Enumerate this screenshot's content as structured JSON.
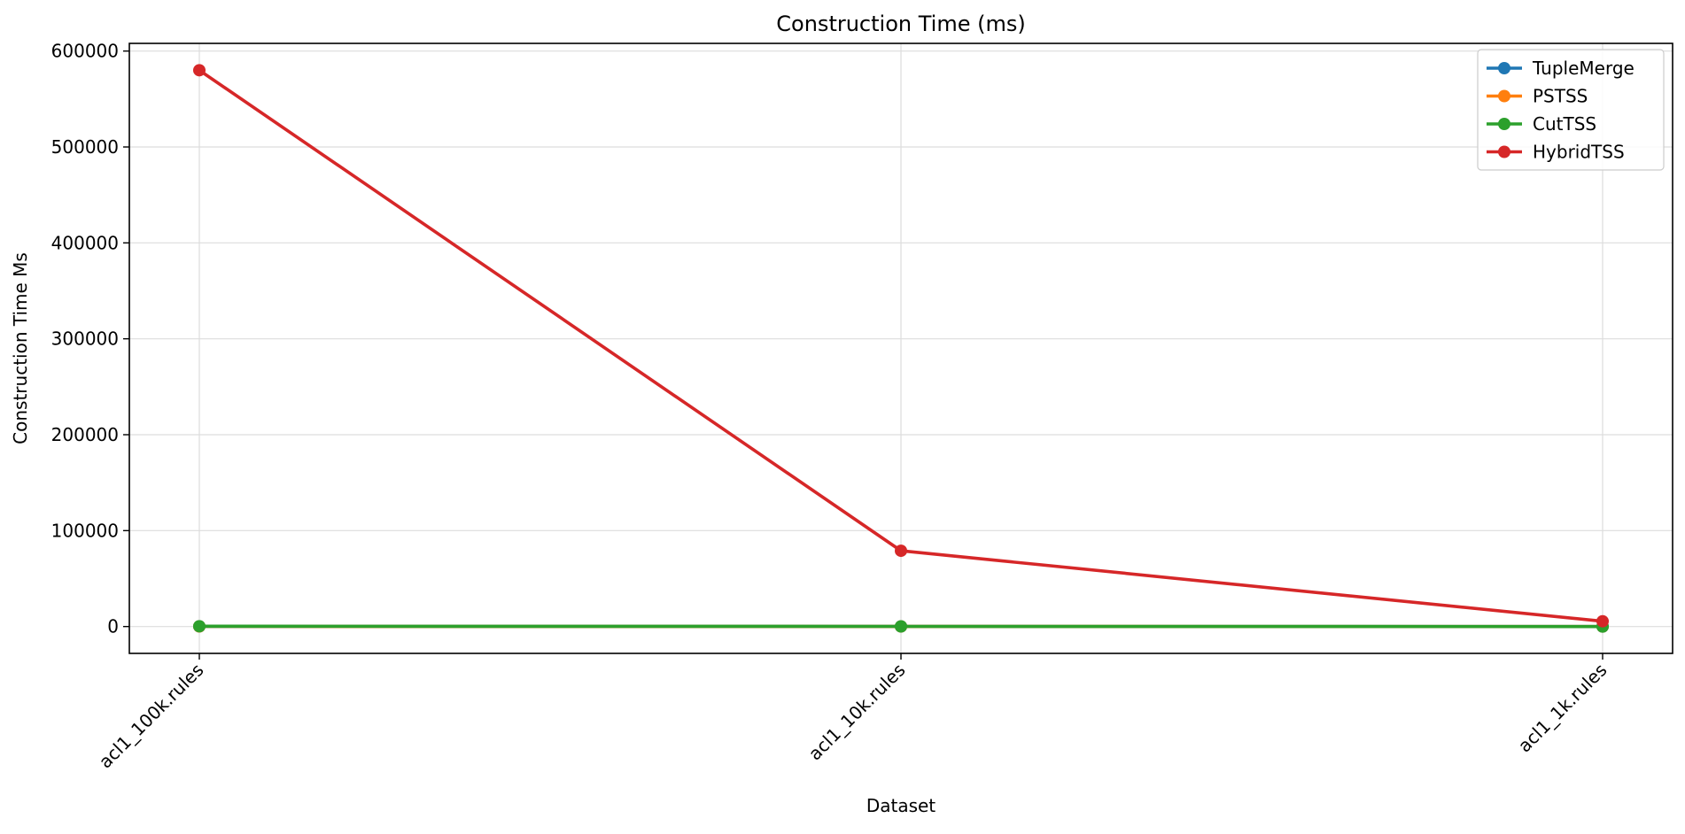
{
  "chart_data": {
    "type": "line",
    "title": "Construction Time (ms)",
    "xlabel": "Dataset",
    "ylabel": "Construction Time Ms",
    "categories": [
      "acl1_100k.rules",
      "acl1_10k.rules",
      "acl1_1k.rules"
    ],
    "ylim": [
      -28000,
      608000
    ],
    "yticks": [
      0,
      100000,
      200000,
      300000,
      400000,
      500000,
      600000
    ],
    "ytick_labels": [
      "0",
      "100000",
      "200000",
      "300000",
      "400000",
      "500000",
      "600000"
    ],
    "grid": true,
    "legend_position": "top-right",
    "series": [
      {
        "name": "TupleMerge",
        "color": "#1f77b4",
        "values": [
          120,
          60,
          10
        ]
      },
      {
        "name": "PSTSS",
        "color": "#ff7f0e",
        "values": [
          150,
          80,
          15
        ]
      },
      {
        "name": "CutTSS",
        "color": "#2ca02c",
        "values": [
          300,
          150,
          20
        ]
      },
      {
        "name": "HybridTSS",
        "color": "#d62728",
        "values": [
          580000,
          79000,
          5500
        ]
      }
    ]
  }
}
